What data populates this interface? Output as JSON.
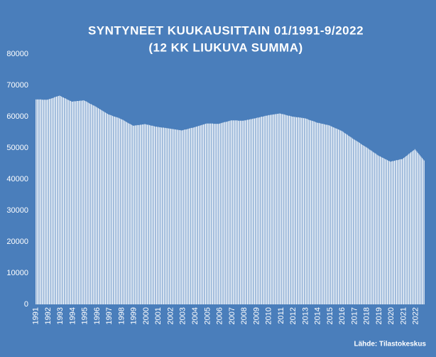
{
  "chart_data": {
    "type": "bar",
    "title": "SYNTYNEET  KUUKAUSITTAIN  01/1991-9/2022",
    "subtitle": "(12 KK LIUKUVA SUMMA)",
    "source": "Lähde: Tilastokeskus",
    "color": "#ffffff",
    "background": "#4a7ebb",
    "ylim": [
      0,
      80000
    ],
    "yticks": [
      0,
      10000,
      20000,
      30000,
      40000,
      50000,
      60000,
      70000,
      80000
    ],
    "grid": false,
    "categories": [
      "1991",
      null,
      null,
      null,
      null,
      null,
      null,
      null,
      null,
      null,
      null,
      null,
      "1992",
      null,
      null,
      null,
      null,
      null,
      null,
      null,
      null,
      null,
      null,
      null,
      "1993",
      null,
      null,
      null,
      null,
      null,
      null,
      null,
      null,
      null,
      null,
      null,
      "1994",
      null,
      null,
      null,
      null,
      null,
      null,
      null,
      null,
      null,
      null,
      null,
      "1995",
      null,
      null,
      null,
      null,
      null,
      null,
      null,
      null,
      null,
      null,
      null,
      "1996",
      null,
      null,
      null,
      null,
      null,
      null,
      null,
      null,
      null,
      null,
      null,
      "1997",
      null,
      null,
      null,
      null,
      null,
      null,
      null,
      null,
      null,
      null,
      null,
      "1998",
      null,
      null,
      null,
      null,
      null,
      null,
      null,
      null,
      null,
      null,
      null,
      "1999",
      null,
      null,
      null,
      null,
      null,
      null,
      null,
      null,
      null,
      null,
      null,
      "2000",
      null,
      null,
      null,
      null,
      null,
      null,
      null,
      null,
      null,
      null,
      null,
      "2001",
      null,
      null,
      null,
      null,
      null,
      null,
      null,
      null,
      null,
      null,
      null,
      "2002",
      null,
      null,
      null,
      null,
      null,
      null,
      null,
      null,
      null,
      null,
      null,
      "2003",
      null,
      null,
      null,
      null,
      null,
      null,
      null,
      null,
      null,
      null,
      null,
      "2004",
      null,
      null,
      null,
      null,
      null,
      null,
      null,
      null,
      null,
      null,
      null,
      "2005",
      null,
      null,
      null,
      null,
      null,
      null,
      null,
      null,
      null,
      null,
      null,
      "2006",
      null,
      null,
      null,
      null,
      null,
      null,
      null,
      null,
      null,
      null,
      null,
      "2007",
      null,
      null,
      null,
      null,
      null,
      null,
      null,
      null,
      null,
      null,
      null,
      "2008",
      null,
      null,
      null,
      null,
      null,
      null,
      null,
      null,
      null,
      null,
      null,
      "2009",
      null,
      null,
      null,
      null,
      null,
      null,
      null,
      null,
      null,
      null,
      null,
      "2010",
      null,
      null,
      null,
      null,
      null,
      null,
      null,
      null,
      null,
      null,
      null,
      "2011",
      null,
      null,
      null,
      null,
      null,
      null,
      null,
      null,
      null,
      null,
      null,
      "2012",
      null,
      null,
      null,
      null,
      null,
      null,
      null,
      null,
      null,
      null,
      null,
      "2013",
      null,
      null,
      null,
      null,
      null,
      null,
      null,
      null,
      null,
      null,
      null,
      "2014",
      null,
      null,
      null,
      null,
      null,
      null,
      null,
      null,
      null,
      null,
      null,
      "2015",
      null,
      null,
      null,
      null,
      null,
      null,
      null,
      null,
      null,
      null,
      null,
      "2016",
      null,
      null,
      null,
      null,
      null,
      null,
      null,
      null,
      null,
      null,
      null,
      "2017",
      null,
      null,
      null,
      null,
      null,
      null,
      null,
      null,
      null,
      null,
      null,
      "2018",
      null,
      null,
      null,
      null,
      null,
      null,
      null,
      null,
      null,
      null,
      null,
      "2019",
      null,
      null,
      null,
      null,
      null,
      null,
      null,
      null,
      null,
      null,
      null,
      "2020",
      null,
      null,
      null,
      null,
      null,
      null,
      null,
      null,
      null,
      null,
      null,
      "2021",
      null,
      null,
      null,
      null,
      null,
      null,
      null,
      null,
      null,
      null,
      null,
      "2022",
      null,
      null,
      null,
      null,
      null,
      null,
      null,
      null
    ],
    "values": [
      65500,
      65500,
      65500,
      65500,
      65500,
      65500,
      65400,
      65400,
      65400,
      65400,
      65400,
      65400,
      65500,
      65600,
      65700,
      65800,
      65900,
      66000,
      66200,
      66300,
      66400,
      66500,
      66600,
      66700,
      66600,
      66400,
      66200,
      66100,
      65900,
      65800,
      65600,
      65400,
      65300,
      65100,
      65000,
      64800,
      64800,
      64900,
      64900,
      64900,
      65000,
      65000,
      65000,
      65100,
      65100,
      65100,
      65200,
      65200,
      65000,
      64900,
      64700,
      64500,
      64300,
      64100,
      64000,
      63800,
      63600,
      63500,
      63300,
      63100,
      62900,
      62700,
      62500,
      62300,
      62100,
      61900,
      61700,
      61500,
      61300,
      61100,
      60900,
      60700,
      60600,
      60500,
      60400,
      60200,
      60100,
      60000,
      59900,
      59800,
      59700,
      59600,
      59400,
      59300,
      59100,
      59000,
      58800,
      58600,
      58400,
      58200,
      58000,
      57800,
      57700,
      57500,
      57300,
      57100,
      57100,
      57200,
      57200,
      57300,
      57300,
      57300,
      57400,
      57400,
      57500,
      57500,
      57600,
      57600,
      57500,
      57400,
      57400,
      57300,
      57200,
      57100,
      57100,
      57000,
      56900,
      56800,
      56800,
      56700,
      56700,
      56600,
      56600,
      56500,
      56500,
      56500,
      56400,
      56400,
      56300,
      56300,
      56200,
      56200,
      56100,
      56100,
      56000,
      56000,
      55900,
      55900,
      55800,
      55800,
      55700,
      55700,
      55600,
      55600,
      55700,
      55800,
      55900,
      55900,
      56000,
      56100,
      56200,
      56300,
      56400,
      56400,
      56500,
      56600,
      56700,
      56800,
      56900,
      57000,
      57100,
      57200,
      57300,
      57400,
      57500,
      57600,
      57700,
      57800,
      57800,
      57800,
      57800,
      57800,
      57800,
      57800,
      57700,
      57700,
      57700,
      57700,
      57700,
      57700,
      57800,
      57900,
      58000,
      58100,
      58200,
      58300,
      58300,
      58400,
      58500,
      58600,
      58700,
      58800,
      58800,
      58800,
      58800,
      58800,
      58800,
      58800,
      58700,
      58700,
      58700,
      58700,
      58700,
      58700,
      58800,
      58800,
      58900,
      59000,
      59000,
      59100,
      59200,
      59200,
      59300,
      59400,
      59400,
      59500,
      59600,
      59700,
      59700,
      59800,
      59900,
      60000,
      60000,
      60100,
      60200,
      60300,
      60300,
      60400,
      60500,
      60500,
      60600,
      60600,
      60700,
      60700,
      60800,
      60800,
      60900,
      60900,
      61000,
      61000,
      60900,
      60800,
      60800,
      60700,
      60600,
      60500,
      60400,
      60300,
      60300,
      60200,
      60100,
      60000,
      60000,
      59900,
      59900,
      59800,
      59800,
      59800,
      59700,
      59700,
      59600,
      59600,
      59500,
      59500,
      59400,
      59300,
      59200,
      59000,
      58900,
      58800,
      58700,
      58600,
      58500,
      58400,
      58200,
      58100,
      58000,
      58000,
      57900,
      57800,
      57700,
      57700,
      57600,
      57500,
      57400,
      57400,
      57300,
      57200,
      57100,
      56900,
      56800,
      56600,
      56500,
      56300,
      56200,
      56100,
      55900,
      55800,
      55600,
      55500,
      55300,
      55100,
      54800,
      54600,
      54400,
      54200,
      53900,
      53700,
      53500,
      53300,
      53000,
      52800,
      52600,
      52400,
      52200,
      52000,
      51800,
      51600,
      51300,
      51100,
      50900,
      50700,
      50500,
      50300,
      50100,
      49900,
      49600,
      49400,
      49200,
      49000,
      48700,
      48500,
      48300,
      48100,
      47800,
      47600,
      47400,
      47300,
      47100,
      46900,
      46800,
      46600,
      46400,
      46300,
      46100,
      45900,
      45800,
      45600,
      45700,
      45800,
      45800,
      45900,
      46000,
      46100,
      46100,
      46200,
      46300,
      46400,
      46400,
      46500,
      46800,
      47000,
      47300,
      47500,
      47800,
      48100,
      48300,
      48600,
      48800,
      49100,
      49300,
      49600,
      49200,
      48800,
      48400,
      48000,
      47600,
      47200,
      46800,
      46400,
      46000
    ]
  }
}
